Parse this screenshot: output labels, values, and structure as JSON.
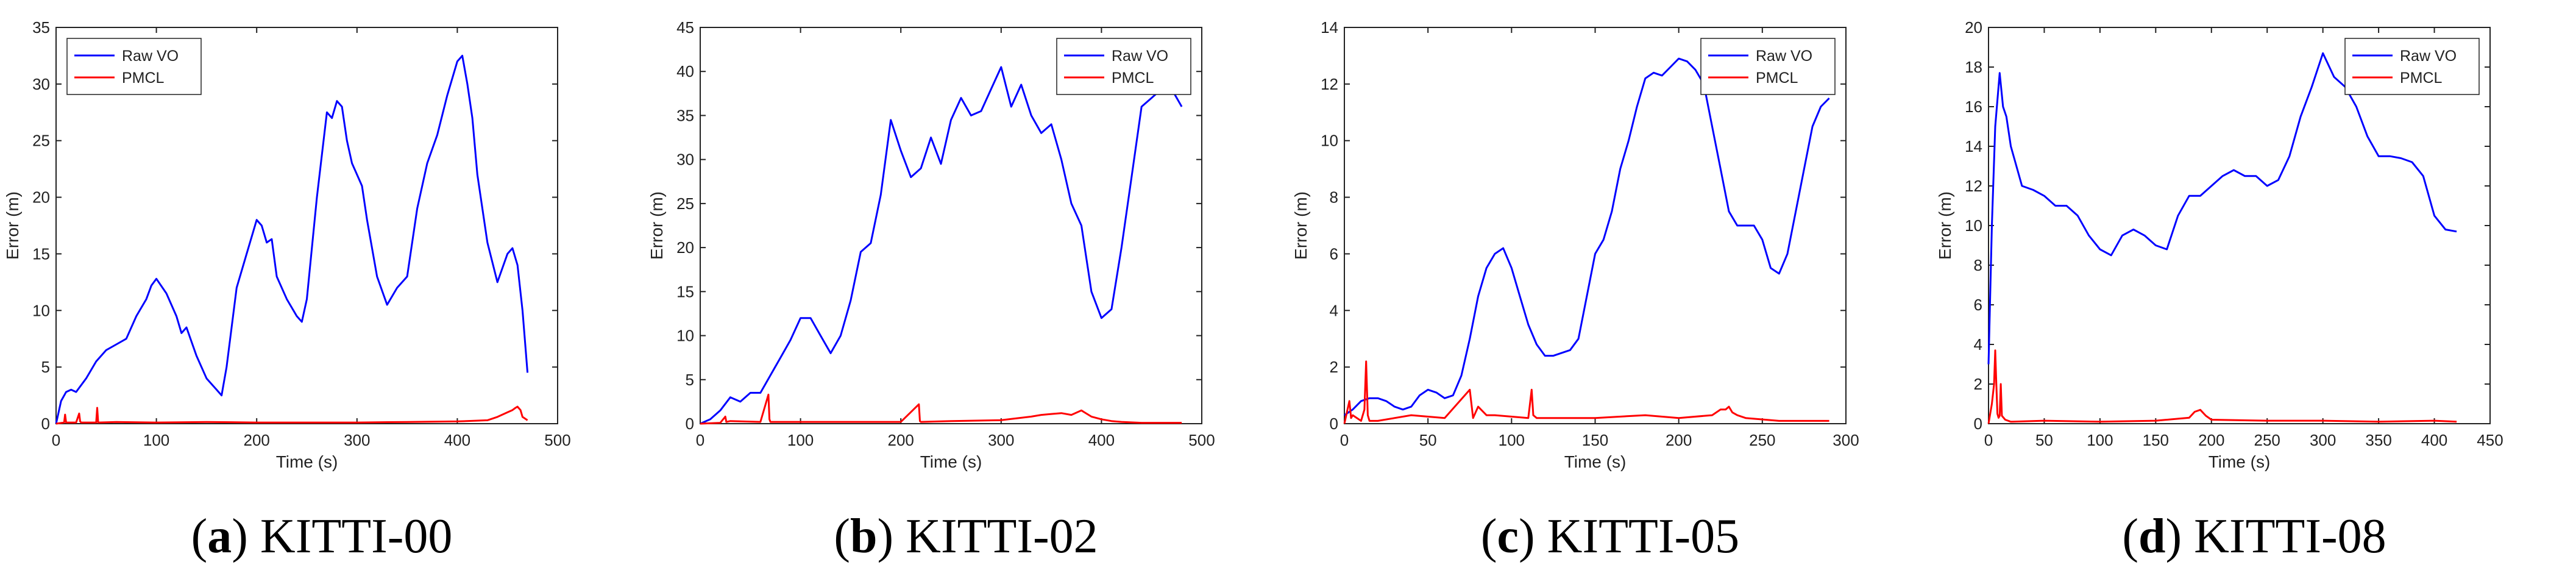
{
  "colors": {
    "raw": "#0000ff",
    "pmcl": "#ff0000",
    "axis": "#222222"
  },
  "chart_data": [
    {
      "type": "line",
      "panel_label": "a",
      "caption": "KITTI-00",
      "xlabel": "Time (s)",
      "ylabel": "Error (m)",
      "xlim": [
        0,
        500
      ],
      "ylim": [
        0,
        35
      ],
      "xticks": [
        0,
        100,
        200,
        300,
        400,
        500
      ],
      "yticks": [
        0,
        5,
        10,
        15,
        20,
        25,
        30,
        35
      ],
      "legend": {
        "position": "top-left",
        "entries": [
          "Raw VO",
          "PMCL"
        ]
      },
      "series": [
        {
          "name": "Raw VO",
          "x": [
            0,
            5,
            10,
            15,
            20,
            30,
            40,
            50,
            60,
            70,
            80,
            90,
            95,
            100,
            110,
            120,
            125,
            130,
            140,
            150,
            160,
            165,
            170,
            180,
            190,
            200,
            205,
            210,
            215,
            220,
            230,
            240,
            245,
            250,
            260,
            270,
            275,
            280,
            285,
            290,
            295,
            300,
            305,
            310,
            320,
            330,
            340,
            350,
            360,
            370,
            380,
            390,
            400,
            405,
            410,
            415,
            420,
            430,
            440,
            450,
            455,
            460,
            465,
            470
          ],
          "y": [
            0,
            2,
            2.8,
            3,
            2.8,
            4,
            5.5,
            6.5,
            7,
            7.5,
            9.5,
            11,
            12.2,
            12.8,
            11.5,
            9.5,
            8,
            8.5,
            6,
            4,
            3,
            2.5,
            5,
            12,
            15,
            18,
            17.5,
            16,
            16.3,
            13,
            11,
            9.5,
            9,
            11,
            20,
            27.5,
            27,
            28.5,
            28,
            25,
            23,
            22,
            21,
            18,
            13,
            10.5,
            12,
            13,
            19,
            23,
            25.5,
            29,
            32,
            32.5,
            30,
            27,
            22,
            16,
            12.5,
            15,
            15.5,
            14,
            10,
            4.5
          ]
        },
        {
          "name": "PMCL",
          "x": [
            0,
            8,
            9,
            10,
            20,
            23,
            24,
            25,
            40,
            41,
            42,
            60,
            100,
            150,
            200,
            250,
            300,
            350,
            400,
            430,
            440,
            450,
            455,
            458,
            460,
            463,
            465,
            470
          ],
          "y": [
            0,
            0.1,
            0.8,
            0.1,
            0.1,
            0.9,
            0.2,
            0.1,
            0.1,
            1.4,
            0.1,
            0.15,
            0.1,
            0.15,
            0.1,
            0.1,
            0.1,
            0.15,
            0.2,
            0.3,
            0.6,
            1.0,
            1.2,
            1.4,
            1.5,
            1.2,
            0.6,
            0.3
          ]
        }
      ]
    },
    {
      "type": "line",
      "panel_label": "b",
      "caption": "KITTI-02",
      "xlabel": "Time (s)",
      "ylabel": "Error (m)",
      "xlim": [
        0,
        500
      ],
      "ylim": [
        0,
        45
      ],
      "xticks": [
        0,
        100,
        200,
        300,
        400,
        500
      ],
      "yticks": [
        0,
        5,
        10,
        15,
        20,
        25,
        30,
        35,
        40,
        45
      ],
      "legend": {
        "position": "top-right",
        "entries": [
          "Raw VO",
          "PMCL"
        ]
      },
      "series": [
        {
          "name": "Raw VO",
          "x": [
            0,
            10,
            20,
            30,
            40,
            50,
            60,
            70,
            80,
            90,
            100,
            110,
            120,
            130,
            140,
            150,
            160,
            170,
            180,
            190,
            200,
            210,
            220,
            230,
            240,
            250,
            260,
            270,
            280,
            290,
            300,
            310,
            320,
            330,
            340,
            350,
            360,
            370,
            380,
            390,
            400,
            410,
            420,
            430,
            440,
            450,
            460,
            470,
            480
          ],
          "y": [
            0,
            0.5,
            1.5,
            3,
            2.5,
            3.5,
            3.5,
            5.5,
            7.5,
            9.5,
            12,
            12,
            10,
            8,
            10,
            14,
            19.5,
            20.5,
            26,
            34.5,
            31,
            28,
            29,
            32.5,
            29.5,
            34.5,
            37,
            35,
            35.5,
            38,
            40.5,
            36,
            38.5,
            35,
            33,
            34,
            30,
            25,
            22.5,
            15,
            12,
            13,
            20,
            28,
            36,
            37,
            38,
            38,
            36
          ]
        },
        {
          "name": "PMCL",
          "x": [
            0,
            20,
            25,
            26,
            30,
            60,
            68,
            69,
            70,
            100,
            150,
            200,
            218,
            219,
            220,
            250,
            300,
            330,
            340,
            350,
            360,
            370,
            380,
            390,
            400,
            410,
            420,
            440,
            460,
            480
          ],
          "y": [
            0,
            0.1,
            0.8,
            0.2,
            0.3,
            0.2,
            3.3,
            0.5,
            0.2,
            0.2,
            0.2,
            0.2,
            2.2,
            0.3,
            0.2,
            0.3,
            0.4,
            0.8,
            1.0,
            1.1,
            1.2,
            1.0,
            1.5,
            0.8,
            0.5,
            0.3,
            0.2,
            0.1,
            0.1,
            0.1
          ]
        }
      ]
    },
    {
      "type": "line",
      "panel_label": "c",
      "caption": "KITTI-05",
      "xlabel": "Time (s)",
      "ylabel": "Error (m)",
      "xlim": [
        0,
        300
      ],
      "ylim": [
        0,
        14
      ],
      "xticks": [
        0,
        50,
        100,
        150,
        200,
        250,
        300
      ],
      "yticks": [
        0,
        2,
        4,
        6,
        8,
        10,
        12,
        14
      ],
      "legend": {
        "position": "top-right",
        "entries": [
          "Raw VO",
          "PMCL"
        ]
      },
      "series": [
        {
          "name": "Raw VO",
          "x": [
            0,
            5,
            10,
            15,
            20,
            25,
            30,
            35,
            40,
            45,
            50,
            55,
            60,
            65,
            70,
            75,
            80,
            85,
            90,
            95,
            100,
            105,
            110,
            115,
            120,
            125,
            130,
            135,
            140,
            145,
            150,
            155,
            160,
            165,
            170,
            175,
            180,
            185,
            190,
            195,
            200,
            205,
            210,
            215,
            220,
            225,
            230,
            235,
            240,
            245,
            250,
            255,
            260,
            265,
            270,
            275,
            280,
            285,
            290
          ],
          "y": [
            0.3,
            0.5,
            0.8,
            0.9,
            0.9,
            0.8,
            0.6,
            0.5,
            0.6,
            1.0,
            1.2,
            1.1,
            0.9,
            1.0,
            1.7,
            3.0,
            4.5,
            5.5,
            6.0,
            6.2,
            5.5,
            4.5,
            3.5,
            2.8,
            2.4,
            2.4,
            2.5,
            2.6,
            3.0,
            4.5,
            6.0,
            6.5,
            7.5,
            9.0,
            10.0,
            11.2,
            12.2,
            12.4,
            12.3,
            12.6,
            12.9,
            12.8,
            12.5,
            12.0,
            10.5,
            9.0,
            7.5,
            7.0,
            7.0,
            7.0,
            6.5,
            5.5,
            5.3,
            6.0,
            7.5,
            9.0,
            10.5,
            11.2,
            11.5
          ]
        },
        {
          "name": "PMCL",
          "x": [
            0,
            3,
            4,
            5,
            10,
            12,
            13,
            14,
            15,
            20,
            40,
            60,
            75,
            76,
            77,
            80,
            85,
            90,
            110,
            112,
            113,
            115,
            150,
            180,
            200,
            220,
            225,
            228,
            230,
            232,
            235,
            240,
            260,
            290
          ],
          "y": [
            0,
            0.8,
            0.2,
            0.3,
            0.1,
            0.5,
            2.2,
            0.3,
            0.1,
            0.1,
            0.3,
            0.2,
            1.2,
            0.7,
            0.2,
            0.6,
            0.3,
            0.3,
            0.2,
            1.2,
            0.3,
            0.2,
            0.2,
            0.3,
            0.2,
            0.3,
            0.5,
            0.5,
            0.6,
            0.4,
            0.3,
            0.2,
            0.1,
            0.1
          ]
        }
      ]
    },
    {
      "type": "line",
      "panel_label": "d",
      "caption": "KITTI-08",
      "xlabel": "Time (s)",
      "ylabel": "Error (m)",
      "xlim": [
        0,
        450
      ],
      "ylim": [
        0,
        20
      ],
      "xticks": [
        0,
        50,
        100,
        150,
        200,
        250,
        300,
        350,
        400,
        450
      ],
      "yticks": [
        0,
        2,
        4,
        6,
        8,
        10,
        12,
        14,
        16,
        18,
        20
      ],
      "legend": {
        "position": "top-right",
        "entries": [
          "Raw VO",
          "PMCL"
        ]
      },
      "series": [
        {
          "name": "Raw VO",
          "x": [
            0,
            3,
            6,
            10,
            13,
            16,
            20,
            30,
            40,
            50,
            60,
            70,
            80,
            90,
            100,
            110,
            120,
            130,
            140,
            150,
            160,
            170,
            180,
            190,
            200,
            210,
            220,
            230,
            240,
            250,
            260,
            270,
            280,
            290,
            300,
            310,
            320,
            330,
            340,
            350,
            360,
            370,
            380,
            390,
            400,
            410,
            420
          ],
          "y": [
            3,
            10,
            15,
            17.7,
            16,
            15.5,
            14,
            12,
            11.8,
            11.5,
            11,
            11,
            10.5,
            9.5,
            8.8,
            8.5,
            9.5,
            9.8,
            9.5,
            9.0,
            8.8,
            10.5,
            11.5,
            11.5,
            12.0,
            12.5,
            12.8,
            12.5,
            12.5,
            12.0,
            12.3,
            13.5,
            15.5,
            17.0,
            18.7,
            17.5,
            17.0,
            16.0,
            14.5,
            13.5,
            13.5,
            13.4,
            13.2,
            12.5,
            10.5,
            9.8,
            9.7
          ]
        },
        {
          "name": "PMCL",
          "x": [
            0,
            3,
            5,
            6,
            7,
            8,
            9,
            10,
            11,
            12,
            15,
            20,
            50,
            100,
            150,
            180,
            185,
            190,
            195,
            200,
            250,
            300,
            350,
            400,
            420
          ],
          "y": [
            0,
            1.0,
            2.0,
            3.7,
            2.0,
            0.5,
            0.3,
            0.4,
            2.0,
            0.4,
            0.2,
            0.1,
            0.15,
            0.1,
            0.15,
            0.3,
            0.6,
            0.7,
            0.4,
            0.2,
            0.15,
            0.15,
            0.1,
            0.15,
            0.1
          ]
        }
      ]
    }
  ]
}
